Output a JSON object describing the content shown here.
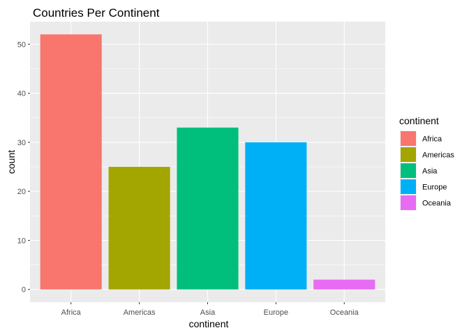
{
  "chart_data": {
    "type": "bar",
    "title": "Countries Per Continent",
    "xlabel": "continent",
    "ylabel": "count",
    "categories": [
      "Africa",
      "Americas",
      "Asia",
      "Europe",
      "Oceania"
    ],
    "values": [
      52,
      25,
      33,
      30,
      2
    ],
    "colors": [
      "#F8766D",
      "#A3A500",
      "#00BF7D",
      "#00B0F6",
      "#E76BF3"
    ],
    "yticks": [
      0,
      10,
      20,
      30,
      40,
      50
    ],
    "ylim": [
      -2.6,
      54.6
    ],
    "grid": true,
    "panel_background": "#EBEBEB",
    "legend": {
      "title": "continent",
      "position": "right",
      "entries": [
        "Africa",
        "Americas",
        "Asia",
        "Europe",
        "Oceania"
      ]
    }
  }
}
